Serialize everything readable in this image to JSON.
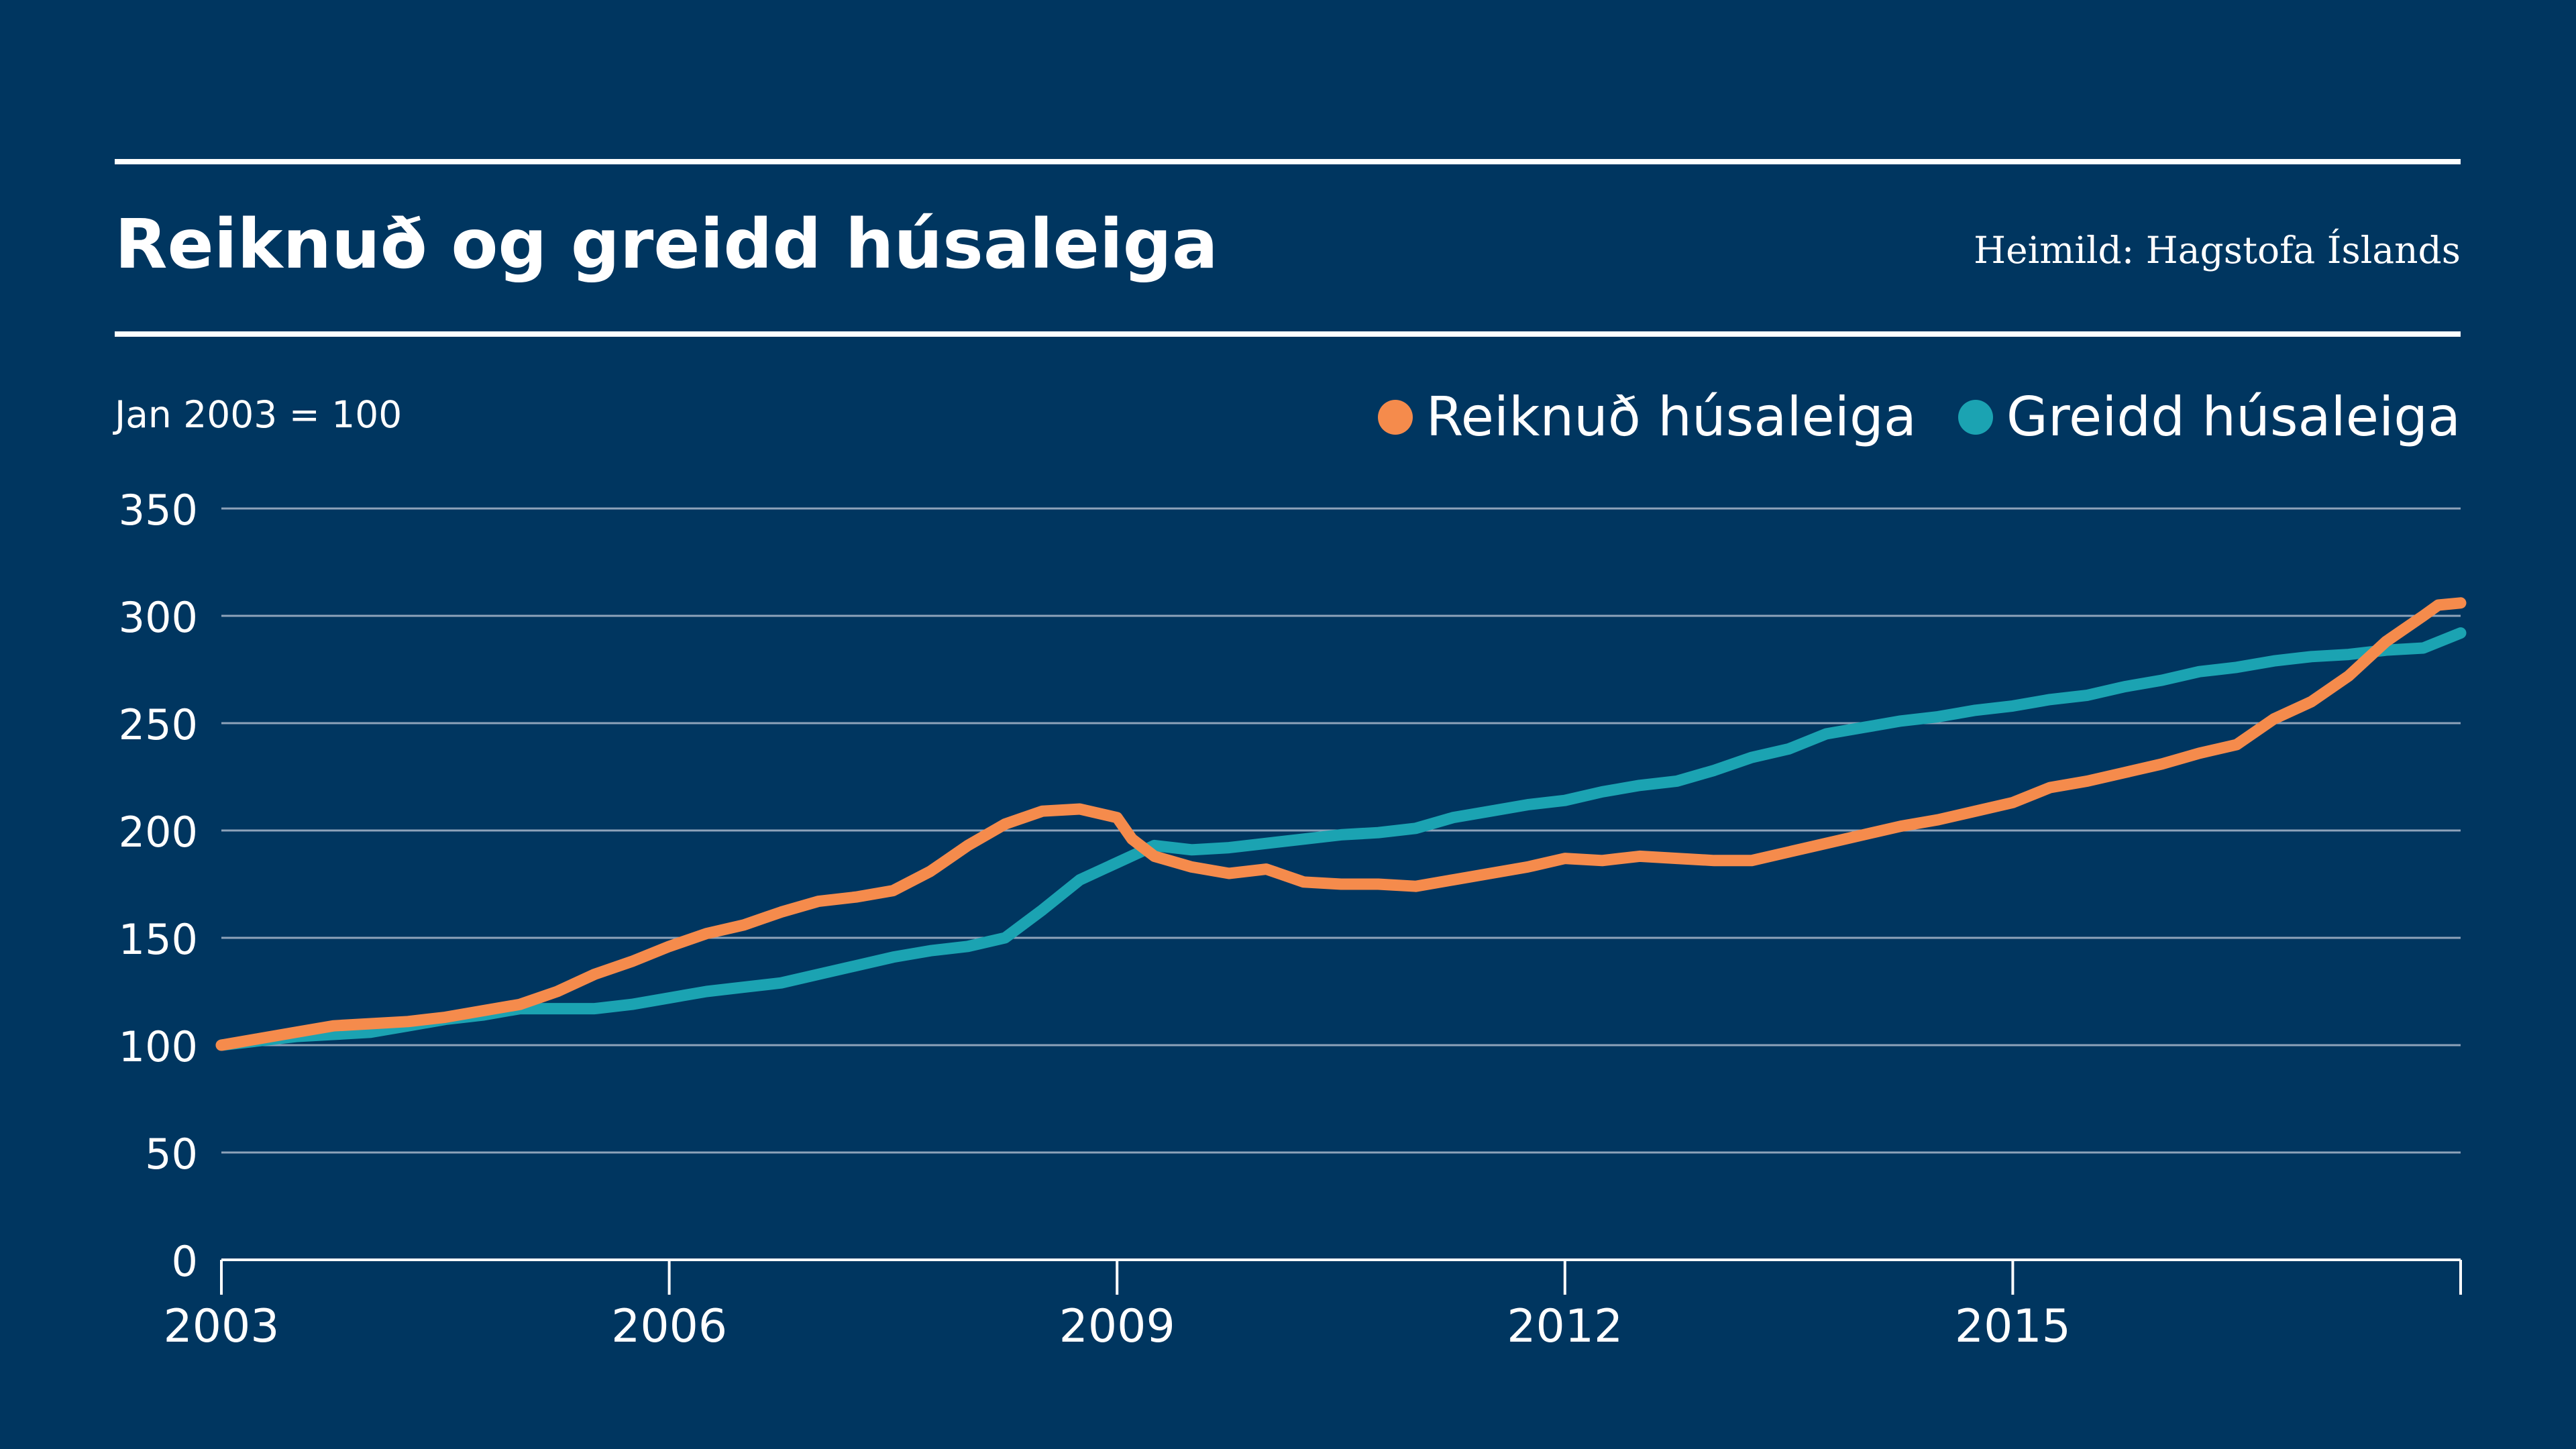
{
  "title": "Reiknuð og greidd húsaleiga",
  "source": "Heimild: Hagstofa Íslands",
  "unit_note": "Jan 2003 = 100",
  "colors": {
    "background": "#003660",
    "reiknud": "#F58B4C",
    "greidd": "#1BA3B2",
    "grid": "#8EA3BA",
    "text": "#ffffff"
  },
  "legend": [
    {
      "label": "Reiknuð húsaleiga",
      "color": "#F58B4C"
    },
    {
      "label": "Greidd húsaleiga",
      "color": "#1BA3B2"
    }
  ],
  "chart_data": {
    "type": "line",
    "x_ticks": [
      2003,
      2006,
      2009,
      2012,
      2015
    ],
    "x_tick_labels": [
      "2003",
      "2006",
      "2009",
      "2012",
      "2015"
    ],
    "xlim": [
      2003,
      2018
    ],
    "ylim": [
      0,
      350
    ],
    "y_ticks": [
      0,
      50,
      100,
      150,
      200,
      250,
      300,
      350
    ],
    "grid": true,
    "legend_position": "top-right",
    "series": [
      {
        "name": "Reiknuð húsaleiga",
        "color": "#F58B4C",
        "points": [
          [
            2003.0,
            100
          ],
          [
            2003.25,
            103
          ],
          [
            2003.5,
            106
          ],
          [
            2003.75,
            109
          ],
          [
            2004.0,
            110
          ],
          [
            2004.25,
            111
          ],
          [
            2004.5,
            113
          ],
          [
            2004.75,
            116
          ],
          [
            2005.0,
            119
          ],
          [
            2005.25,
            125
          ],
          [
            2005.5,
            133
          ],
          [
            2005.75,
            139
          ],
          [
            2006.0,
            146
          ],
          [
            2006.25,
            152
          ],
          [
            2006.5,
            156
          ],
          [
            2006.75,
            162
          ],
          [
            2007.0,
            167
          ],
          [
            2007.25,
            169
          ],
          [
            2007.5,
            172
          ],
          [
            2007.75,
            181
          ],
          [
            2008.0,
            193
          ],
          [
            2008.25,
            203
          ],
          [
            2008.5,
            209
          ],
          [
            2008.75,
            210
          ],
          [
            2009.0,
            206
          ],
          [
            2009.1,
            196
          ],
          [
            2009.25,
            188
          ],
          [
            2009.5,
            183
          ],
          [
            2009.75,
            180
          ],
          [
            2010.0,
            182
          ],
          [
            2010.25,
            176
          ],
          [
            2010.5,
            175
          ],
          [
            2010.75,
            175
          ],
          [
            2011.0,
            174
          ],
          [
            2011.25,
            177
          ],
          [
            2011.5,
            180
          ],
          [
            2011.75,
            183
          ],
          [
            2012.0,
            187
          ],
          [
            2012.25,
            186
          ],
          [
            2012.5,
            188
          ],
          [
            2012.75,
            187
          ],
          [
            2013.0,
            186
          ],
          [
            2013.25,
            186
          ],
          [
            2013.5,
            190
          ],
          [
            2013.75,
            194
          ],
          [
            2014.0,
            198
          ],
          [
            2014.25,
            202
          ],
          [
            2014.5,
            205
          ],
          [
            2014.75,
            209
          ],
          [
            2015.0,
            213
          ],
          [
            2015.25,
            220
          ],
          [
            2015.5,
            223
          ],
          [
            2015.75,
            227
          ],
          [
            2016.0,
            231
          ],
          [
            2016.25,
            236
          ],
          [
            2016.5,
            240
          ],
          [
            2016.75,
            252
          ],
          [
            2017.0,
            260
          ],
          [
            2017.25,
            272
          ],
          [
            2017.5,
            288
          ],
          [
            2017.75,
            300
          ],
          [
            2017.85,
            305
          ],
          [
            2018.0,
            306
          ]
        ]
      },
      {
        "name": "Greidd húsaleiga",
        "color": "#1BA3B2",
        "points": [
          [
            2003.0,
            100
          ],
          [
            2003.25,
            102
          ],
          [
            2003.5,
            104
          ],
          [
            2003.75,
            105
          ],
          [
            2004.0,
            106
          ],
          [
            2004.25,
            109
          ],
          [
            2004.5,
            112
          ],
          [
            2004.75,
            114
          ],
          [
            2005.0,
            117
          ],
          [
            2005.25,
            117
          ],
          [
            2005.5,
            117
          ],
          [
            2005.75,
            119
          ],
          [
            2006.0,
            122
          ],
          [
            2006.25,
            125
          ],
          [
            2006.5,
            127
          ],
          [
            2006.75,
            129
          ],
          [
            2007.0,
            133
          ],
          [
            2007.25,
            137
          ],
          [
            2007.5,
            141
          ],
          [
            2007.75,
            144
          ],
          [
            2008.0,
            146
          ],
          [
            2008.25,
            150
          ],
          [
            2008.5,
            163
          ],
          [
            2008.75,
            177
          ],
          [
            2009.0,
            185
          ],
          [
            2009.25,
            193
          ],
          [
            2009.5,
            191
          ],
          [
            2009.75,
            192
          ],
          [
            2010.0,
            194
          ],
          [
            2010.25,
            196
          ],
          [
            2010.5,
            198
          ],
          [
            2010.75,
            199
          ],
          [
            2011.0,
            201
          ],
          [
            2011.25,
            206
          ],
          [
            2011.5,
            209
          ],
          [
            2011.75,
            212
          ],
          [
            2012.0,
            214
          ],
          [
            2012.25,
            218
          ],
          [
            2012.5,
            221
          ],
          [
            2012.75,
            223
          ],
          [
            2013.0,
            228
          ],
          [
            2013.25,
            234
          ],
          [
            2013.5,
            238
          ],
          [
            2013.75,
            245
          ],
          [
            2014.0,
            248
          ],
          [
            2014.25,
            251
          ],
          [
            2014.5,
            253
          ],
          [
            2014.75,
            256
          ],
          [
            2015.0,
            258
          ],
          [
            2015.25,
            261
          ],
          [
            2015.5,
            263
          ],
          [
            2015.75,
            267
          ],
          [
            2016.0,
            270
          ],
          [
            2016.25,
            274
          ],
          [
            2016.5,
            276
          ],
          [
            2016.75,
            279
          ],
          [
            2017.0,
            281
          ],
          [
            2017.25,
            282
          ],
          [
            2017.5,
            284
          ],
          [
            2017.75,
            285
          ],
          [
            2018.0,
            292
          ]
        ]
      }
    ]
  }
}
